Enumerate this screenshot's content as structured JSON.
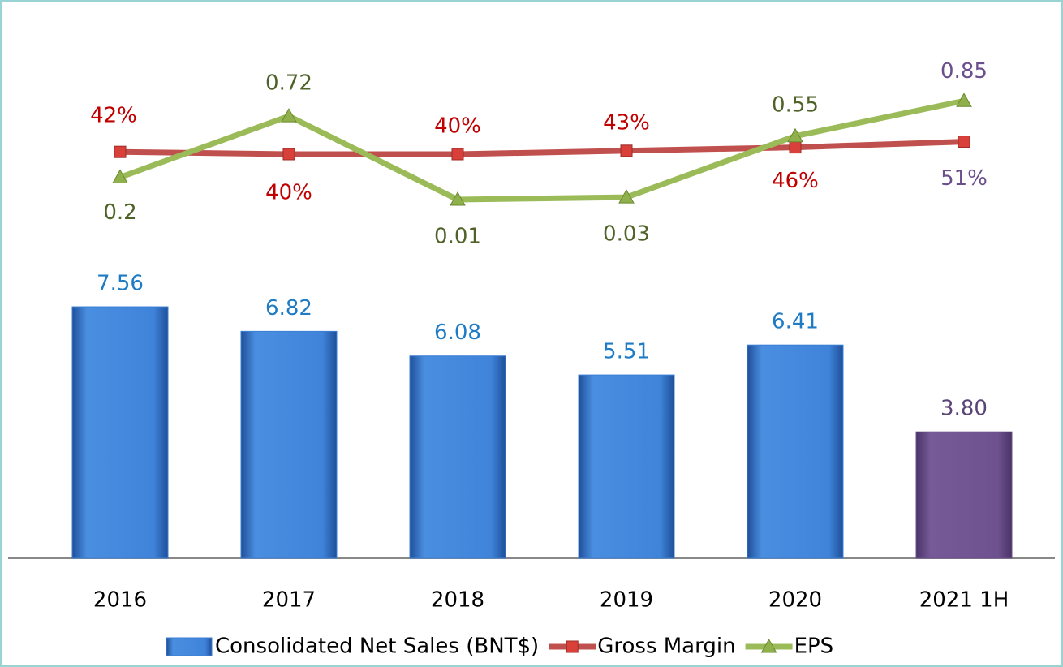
{
  "chart_data": {
    "type": "bar_line",
    "categories": [
      "2016",
      "2017",
      "2018",
      "2019",
      "2020",
      "2021 1H"
    ],
    "series": [
      {
        "name": "Consolidated Net Sales (BNT$)",
        "type": "bar",
        "color": "#3b7fd4",
        "colors": [
          "#3b7fd4",
          "#3b7fd4",
          "#3b7fd4",
          "#3b7fd4",
          "#3b7fd4",
          "#6b4f8c"
        ],
        "values": [
          7.56,
          6.82,
          6.08,
          5.51,
          6.41,
          3.8
        ],
        "value_labels": [
          "7.56",
          "6.82",
          "6.08",
          "5.51",
          "6.41",
          "3.80"
        ]
      },
      {
        "name": "Gross Margin",
        "type": "line",
        "color": "#c0504d",
        "values": [
          42,
          40,
          40,
          43,
          46,
          51
        ],
        "value_labels": [
          "42%",
          "40%",
          "40%",
          "43%",
          "46%",
          "51%"
        ]
      },
      {
        "name": "EPS",
        "type": "line",
        "color": "#9bbb59",
        "values": [
          0.2,
          0.72,
          0.01,
          0.03,
          0.55,
          0.85
        ],
        "value_labels": [
          "0.2",
          "0.72",
          "0.01",
          "0.03",
          "0.55",
          "0.85"
        ]
      }
    ]
  }
}
